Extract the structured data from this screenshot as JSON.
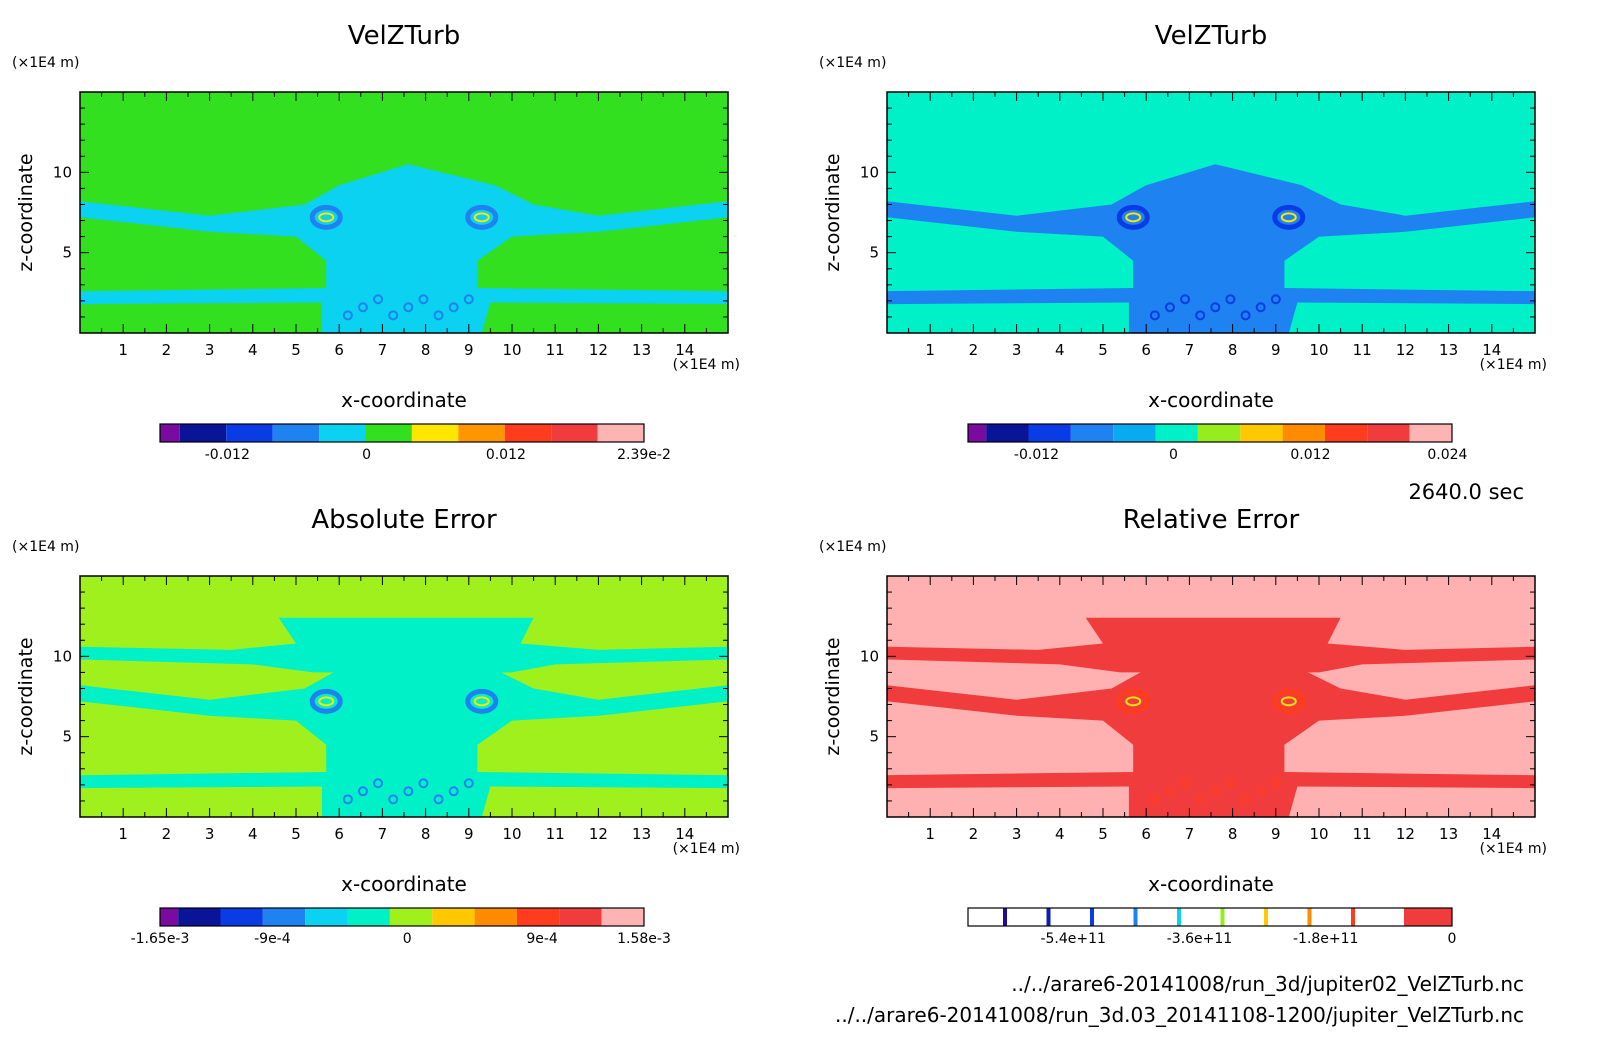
{
  "time_label": "2640.0 sec",
  "files": [
    "../../arare6-20141008/run_3d/jupiter02_VelZTurb.nc",
    "../../arare6-20141008/run_3d.03_20141108-1200/jupiter_VelZTurb.nc"
  ],
  "chart_data": [
    {
      "type": "heatmap",
      "title": "VelZTurb",
      "xlabel": "x-coordinate",
      "ylabel": "z-coordinate",
      "x_unit": "(×1E4 m)",
      "y_unit": "(×1E4 m)",
      "x_ticks": [
        "1",
        "2",
        "3",
        "4",
        "5",
        "6",
        "7",
        "8",
        "9",
        "10",
        "11",
        "12",
        "13",
        "14"
      ],
      "y_ticks": [
        "5",
        "10"
      ],
      "xlim": [
        0,
        15
      ],
      "ylim": [
        0,
        15
      ],
      "background_color": "#33e01f",
      "colorbar": {
        "colors": [
          "#7a0aa0",
          "#0a1496",
          "#0a3ce6",
          "#1e82f0",
          "#0ad2f0",
          "#33e01f",
          "#ffe600",
          "#ff9600",
          "#ff3c1e",
          "#f03c3c",
          "#ffb4b4"
        ],
        "tick_labels": [
          "-0.012",
          "0",
          "0.012",
          "2.39e-2"
        ],
        "tick_values": [
          -0.012,
          0,
          0.012,
          0.0239
        ],
        "range": [
          -0.0178,
          0.0239
        ]
      }
    },
    {
      "type": "heatmap",
      "title": "VelZTurb",
      "xlabel": "x-coordinate",
      "ylabel": "z-coordinate",
      "x_unit": "(×1E4 m)",
      "y_unit": "(×1E4 m)",
      "x_ticks": [
        "1",
        "2",
        "3",
        "4",
        "5",
        "6",
        "7",
        "8",
        "9",
        "10",
        "11",
        "12",
        "13",
        "14"
      ],
      "y_ticks": [
        "5",
        "10"
      ],
      "xlim": [
        0,
        15
      ],
      "ylim": [
        0,
        15
      ],
      "background_color": "#00f0c8",
      "colorbar": {
        "colors": [
          "#7a0aa0",
          "#0a1496",
          "#0a3ce6",
          "#1e82f0",
          "#0aaaf0",
          "#00f0c8",
          "#96ec1e",
          "#ffc800",
          "#ff8c00",
          "#ff3c1e",
          "#f03c3c",
          "#ffb4b4"
        ],
        "tick_labels": [
          "-0.012",
          "0",
          "0.012",
          "0.024"
        ],
        "tick_values": [
          -0.012,
          0,
          0.012,
          0.024
        ],
        "range": [
          -0.018,
          0.0244
        ]
      }
    },
    {
      "type": "heatmap",
      "title": "Absolute Error",
      "xlabel": "x-coordinate",
      "ylabel": "z-coordinate",
      "x_unit": "(×1E4 m)",
      "y_unit": "(×1E4 m)",
      "x_ticks": [
        "1",
        "2",
        "3",
        "4",
        "5",
        "6",
        "7",
        "8",
        "9",
        "10",
        "11",
        "12",
        "13",
        "14"
      ],
      "y_ticks": [
        "5",
        "10"
      ],
      "xlim": [
        0,
        15
      ],
      "ylim": [
        0,
        15
      ],
      "background_color": "#a0f01e",
      "colorbar": {
        "colors": [
          "#7a0aa0",
          "#0a1496",
          "#0a3ce6",
          "#1e82f0",
          "#0ad2f0",
          "#00f0c8",
          "#a0f01e",
          "#ffc800",
          "#ff8c00",
          "#ff3c1e",
          "#f03c3c",
          "#ffb4b4"
        ],
        "tick_labels": [
          "-1.65e-3",
          "-9e-4",
          "0",
          "9e-4",
          "1.58e-3"
        ],
        "tick_values": [
          -0.00165,
          -0.0009,
          0,
          0.0009,
          0.00158
        ],
        "range": [
          -0.00165,
          0.00158
        ]
      }
    },
    {
      "type": "heatmap",
      "title": "Relative Error",
      "xlabel": "x-coordinate",
      "ylabel": "z-coordinate",
      "x_unit": "(×1E4 m)",
      "y_unit": "(×1E4 m)",
      "x_ticks": [
        "1",
        "2",
        "3",
        "4",
        "5",
        "6",
        "7",
        "8",
        "9",
        "10",
        "11",
        "12",
        "13",
        "14"
      ],
      "y_ticks": [
        "5",
        "10"
      ],
      "xlim": [
        0,
        15
      ],
      "ylim": [
        0,
        15
      ],
      "background_color": "#ffb0b0",
      "colorbar": {
        "tick_labels": [
          "-5.4e+11",
          "-3.6e+11",
          "-1.8e+11",
          "0"
        ],
        "tick_values": [
          -540000000000,
          -360000000000,
          -180000000000,
          0
        ],
        "range": [
          -690000000000,
          0
        ],
        "line_colors": [
          "#1e0a96",
          "#0a1eb4",
          "#0a3ce6",
          "#1e82f0",
          "#0ad2f0",
          "#96ec1e",
          "#ffc800",
          "#ff8c00",
          "#ff3c1e"
        ],
        "end_color": "#f03c3c"
      }
    }
  ]
}
